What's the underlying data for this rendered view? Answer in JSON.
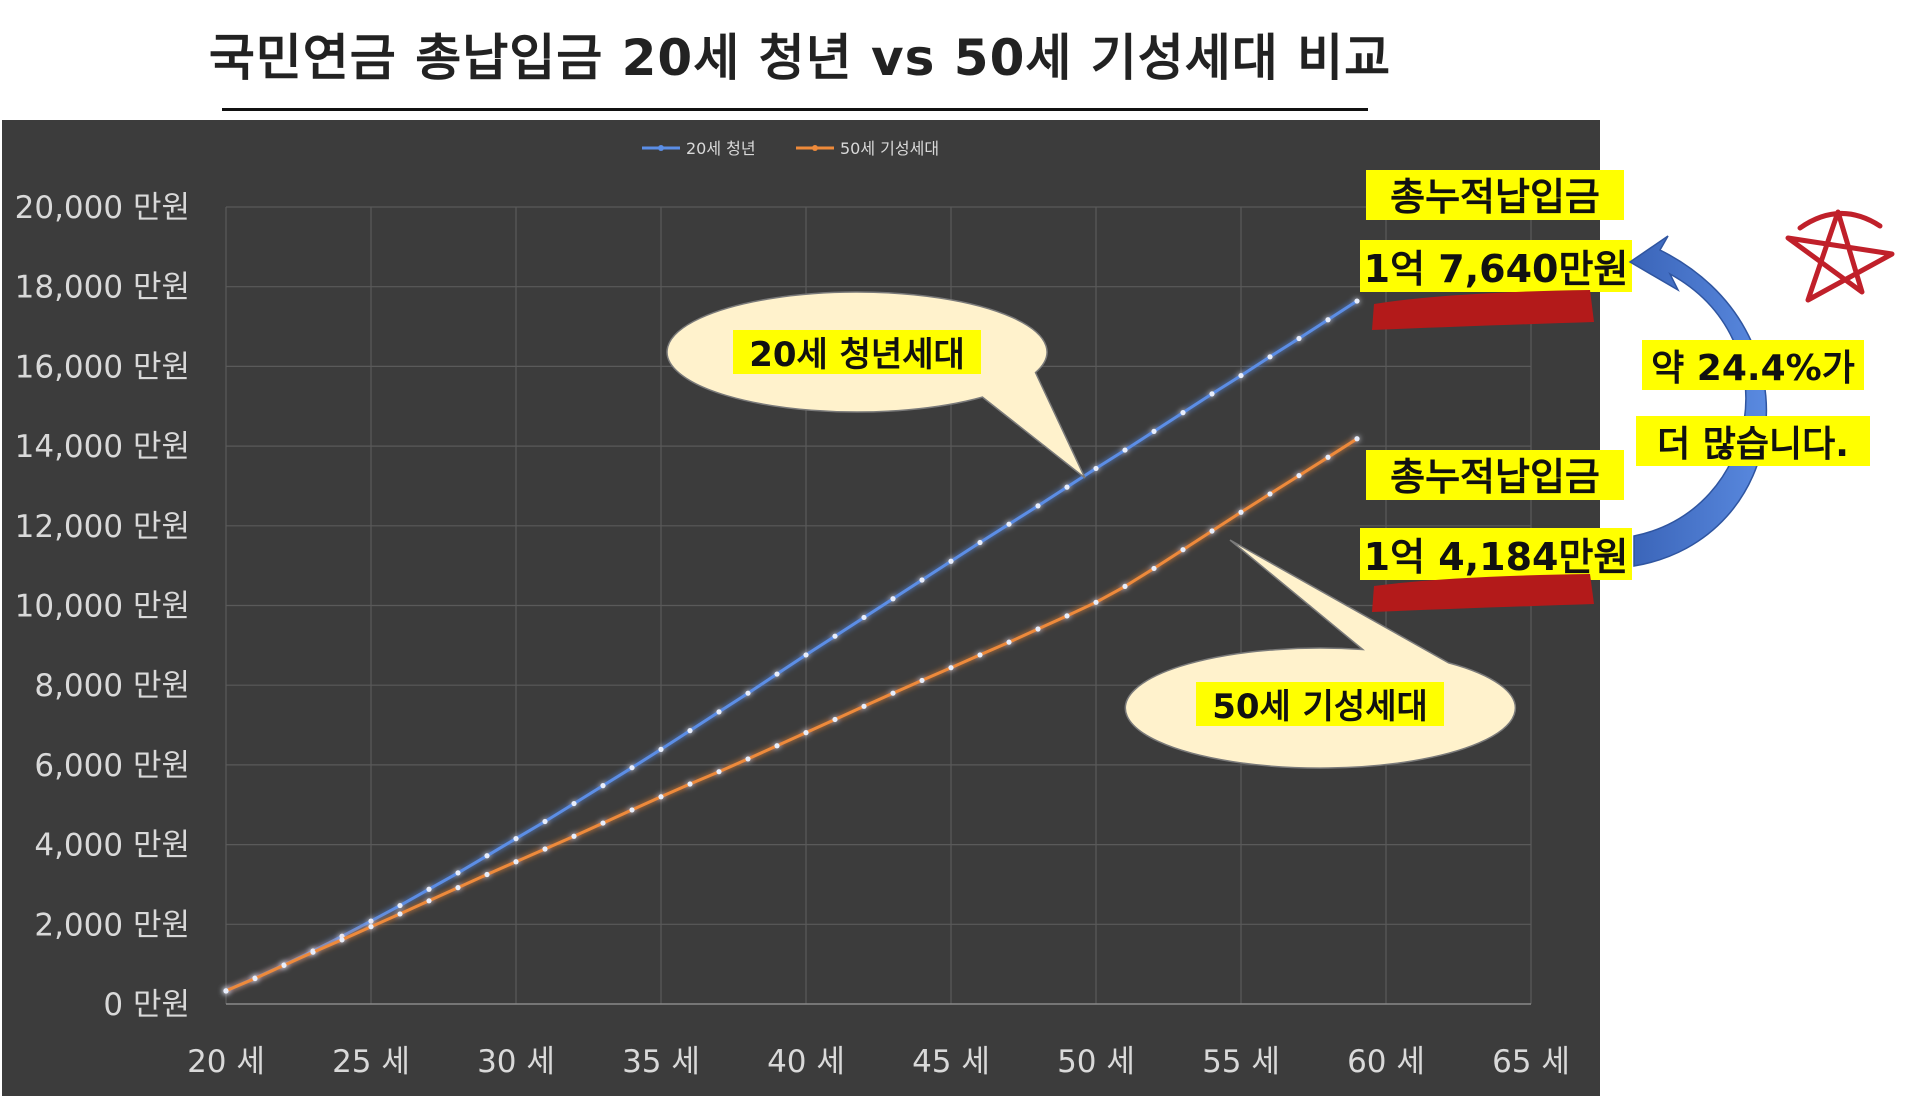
{
  "page": {
    "title": "국민연금 총납입금 20세 청년 vs 50세 기성세대 비교"
  },
  "colors": {
    "background": "#3c3c3c",
    "grid": "#5a5a5a",
    "tick_text": "#d9d9d9",
    "series_blue": "#5b8ee6",
    "series_orange": "#ee8a3a",
    "highlight": "#ffff00",
    "callout_fill": "#fff2cc",
    "arrow": "#4472c4",
    "strike_red": "#b31a1a",
    "star_red": "#c0202a"
  },
  "chart_data": {
    "type": "line",
    "title": "",
    "xlabel": "",
    "ylabel": "",
    "x_tick_labels": [
      "20 세",
      "25 세",
      "30 세",
      "35 세",
      "40 세",
      "45 세",
      "50 세",
      "55 세",
      "60 세",
      "65 세"
    ],
    "x_ticks": [
      20,
      25,
      30,
      35,
      40,
      45,
      50,
      55,
      60,
      65
    ],
    "y_tick_labels": [
      "0 만원",
      "2,000 만원",
      "4,000 만원",
      "6,000 만원",
      "8,000 만원",
      "10,000 만원",
      "12,000 만원",
      "14,000 만원",
      "16,000 만원",
      "18,000 만원",
      "20,000 만원"
    ],
    "y_ticks": [
      0,
      2000,
      4000,
      6000,
      8000,
      10000,
      12000,
      14000,
      16000,
      18000,
      20000
    ],
    "xlim": [
      20,
      65
    ],
    "ylim": [
      0,
      20000
    ],
    "grid": true,
    "legend_position": "top-center",
    "series": [
      {
        "name": "20세 청년",
        "color": "#5b8ee6",
        "x": [
          20,
          21,
          22,
          23,
          24,
          25,
          26,
          27,
          28,
          29,
          30,
          31,
          32,
          33,
          34,
          35,
          36,
          37,
          38,
          39,
          40,
          41,
          42,
          43,
          44,
          45,
          46,
          47,
          48,
          49,
          50,
          51,
          52,
          53,
          54,
          55,
          56,
          57,
          58,
          59
        ],
        "values": [
          330,
          650,
          980,
          1330,
          1700,
          2080,
          2470,
          2880,
          3290,
          3720,
          4150,
          4580,
          5030,
          5480,
          5930,
          6390,
          6860,
          7330,
          7800,
          8280,
          8760,
          9230,
          9700,
          10170,
          10640,
          11110,
          11580,
          12040,
          12500,
          12970,
          13440,
          13900,
          14370,
          14840,
          15310,
          15770,
          16240,
          16700,
          17170,
          17640
        ]
      },
      {
        "name": "50세 기성세대",
        "color": "#ee8a3a",
        "x": [
          20,
          21,
          22,
          23,
          24,
          25,
          26,
          27,
          28,
          29,
          30,
          31,
          32,
          33,
          34,
          35,
          36,
          37,
          38,
          39,
          40,
          41,
          42,
          43,
          44,
          45,
          46,
          47,
          48,
          49,
          50,
          51,
          52,
          53,
          54,
          55,
          56,
          57,
          58,
          59
        ],
        "values": [
          330,
          640,
          970,
          1300,
          1610,
          1940,
          2260,
          2590,
          2920,
          3250,
          3570,
          3890,
          4210,
          4540,
          4870,
          5200,
          5520,
          5830,
          6150,
          6480,
          6810,
          7140,
          7470,
          7800,
          8120,
          8440,
          8760,
          9080,
          9410,
          9740,
          10080,
          10480,
          10930,
          11400,
          11870,
          12340,
          12800,
          13260,
          13720,
          14184
        ]
      }
    ]
  },
  "annotations": {
    "callout_youth": "20세 청년세대",
    "callout_elder": "50세 기성세대",
    "youth_total_label": "총누적납입금",
    "youth_total_value": "1억 7,640만원",
    "elder_total_label": "총누적납입금",
    "elder_total_value": "1억 4,184만원",
    "diff_line1": "약 24.4%가",
    "diff_line2": "더 많습니다."
  }
}
